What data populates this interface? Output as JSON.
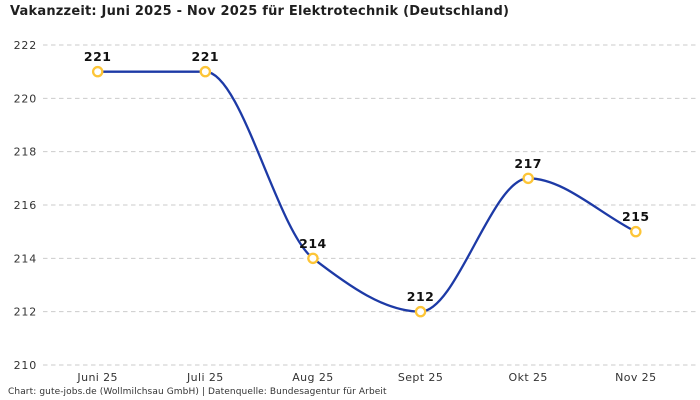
{
  "title": "Vakanzzeit: Juni 2025 - Nov 2025 für Elektrotechnik (Deutschland)",
  "footer": "Chart: gute-jobs.de (Wollmilchsau GmbH) | Datenquelle: Bundesagentur für Arbeit",
  "colors": {
    "background": "#ffffff",
    "line": "#1d3aa6",
    "marker_stroke": "#fdc537",
    "marker_fill": "#ffffff",
    "grid": "#cbcbcb",
    "tick_label": "#333333",
    "data_label": "#111111",
    "title": "#1f1f1f",
    "footer": "#333333"
  },
  "chart_data": {
    "type": "line",
    "title": "Vakanzzeit: Juni 2025 - Nov 2025 für Elektrotechnik (Deutschland)",
    "series_name": "Vakanzzeit Elektrotechnik (Deutschland)",
    "categories": [
      "Juni 25",
      "Juli 25",
      "Aug 25",
      "Sept 25",
      "Okt 25",
      "Nov 25"
    ],
    "values": [
      221,
      221,
      214,
      212,
      217,
      215
    ],
    "point_labels": [
      "221",
      "221",
      "214",
      "212",
      "217",
      "215"
    ],
    "xlabel": "",
    "ylabel": "",
    "ylim": [
      210,
      222
    ],
    "yticks": [
      210,
      212,
      214,
      216,
      218,
      220,
      222
    ],
    "grid": "horizontal-dashed",
    "curve": "monotone",
    "legend": "none",
    "markers": "open-circle"
  }
}
